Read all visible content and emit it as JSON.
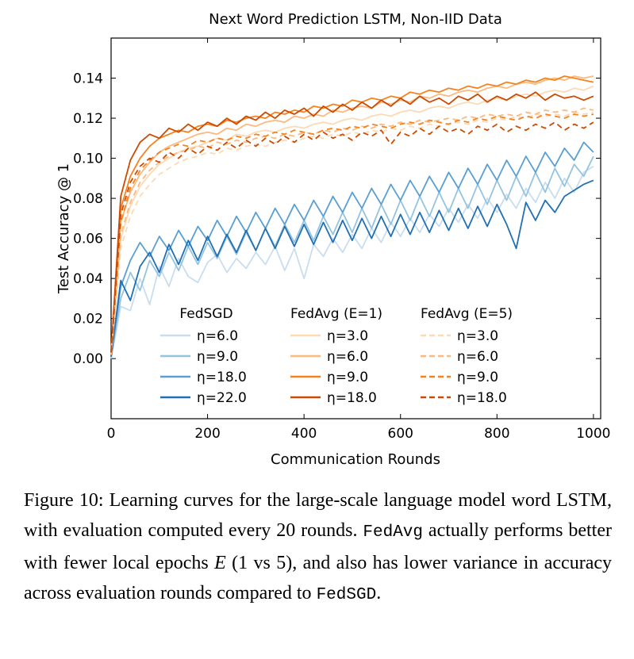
{
  "page": {
    "background": "#ffffff"
  },
  "chart_data": {
    "type": "line",
    "title": "Next Word Prediction LSTM, Non-IID Data",
    "xlabel": "Communication Rounds",
    "ylabel": "Test Accuracy @ 1",
    "xlim": [
      0,
      1015
    ],
    "ylim": [
      -0.03,
      0.16
    ],
    "xticks": [
      0,
      200,
      400,
      600,
      800,
      1000
    ],
    "yticks": [
      "0.00",
      "0.02",
      "0.04",
      "0.06",
      "0.08",
      "0.10",
      "0.12",
      "0.14"
    ],
    "grid": false,
    "legend_position": "lower center, inside plot, three columns, no frame",
    "x": [
      0,
      20,
      40,
      60,
      80,
      100,
      120,
      140,
      160,
      180,
      200,
      220,
      240,
      260,
      280,
      300,
      320,
      340,
      360,
      380,
      400,
      420,
      440,
      460,
      480,
      500,
      520,
      540,
      560,
      580,
      600,
      620,
      640,
      660,
      680,
      700,
      720,
      740,
      760,
      780,
      800,
      820,
      840,
      860,
      880,
      900,
      920,
      940,
      960,
      980,
      1000
    ],
    "legend": {
      "groups": [
        {
          "title": "FedSGD",
          "series": [
            0,
            1,
            2,
            3
          ]
        },
        {
          "title": "FedAvg (E=1)",
          "series": [
            4,
            5,
            6,
            7
          ]
        },
        {
          "title": "FedAvg (E=5)",
          "series": [
            8,
            9,
            10,
            11
          ]
        }
      ]
    },
    "series": [
      {
        "id": "fedsgd-eta-6",
        "group": "FedSGD",
        "label": "η=6.0",
        "eta": 6.0,
        "color": "#c9ddf0",
        "dash": false,
        "values": [
          0.0,
          0.026,
          0.024,
          0.04,
          0.027,
          0.046,
          0.036,
          0.05,
          0.041,
          0.038,
          0.048,
          0.052,
          0.043,
          0.05,
          0.045,
          0.053,
          0.047,
          0.056,
          0.044,
          0.055,
          0.04,
          0.057,
          0.051,
          0.06,
          0.053,
          0.062,
          0.055,
          0.065,
          0.058,
          0.068,
          0.061,
          0.07,
          0.063,
          0.072,
          0.066,
          0.075,
          0.068,
          0.077,
          0.07,
          0.08,
          0.073,
          0.082,
          0.075,
          0.085,
          0.078,
          0.088,
          0.08,
          0.09,
          0.083,
          0.093,
          0.096
        ]
      },
      {
        "id": "fedsgd-eta-9",
        "group": "FedSGD",
        "label": "η=9.0",
        "eta": 9.0,
        "color": "#94c4df",
        "dash": false,
        "values": [
          0.0,
          0.03,
          0.043,
          0.034,
          0.049,
          0.041,
          0.053,
          0.044,
          0.056,
          0.047,
          0.058,
          0.05,
          0.061,
          0.052,
          0.063,
          0.054,
          0.065,
          0.056,
          0.067,
          0.058,
          0.069,
          0.059,
          0.071,
          0.062,
          0.073,
          0.063,
          0.075,
          0.065,
          0.077,
          0.067,
          0.079,
          0.069,
          0.081,
          0.071,
          0.083,
          0.073,
          0.085,
          0.075,
          0.087,
          0.077,
          0.089,
          0.079,
          0.091,
          0.081,
          0.093,
          0.083,
          0.095,
          0.086,
          0.097,
          0.091,
          0.101
        ]
      },
      {
        "id": "fedsgd-eta-18",
        "group": "FedSGD",
        "label": "η=18.0",
        "eta": 18.0,
        "color": "#5a9fd4",
        "dash": false,
        "values": [
          0.001,
          0.036,
          0.049,
          0.058,
          0.051,
          0.061,
          0.054,
          0.064,
          0.056,
          0.066,
          0.059,
          0.069,
          0.061,
          0.071,
          0.063,
          0.073,
          0.065,
          0.075,
          0.067,
          0.077,
          0.069,
          0.079,
          0.071,
          0.081,
          0.073,
          0.083,
          0.075,
          0.085,
          0.077,
          0.087,
          0.079,
          0.089,
          0.081,
          0.091,
          0.083,
          0.093,
          0.085,
          0.095,
          0.087,
          0.097,
          0.089,
          0.099,
          0.091,
          0.101,
          0.093,
          0.103,
          0.096,
          0.105,
          0.099,
          0.108,
          0.103
        ]
      },
      {
        "id": "fedsgd-eta-22",
        "group": "FedSGD",
        "label": "η=22.0",
        "eta": 22.0,
        "color": "#2070b4",
        "dash": false,
        "values": [
          0.001,
          0.039,
          0.029,
          0.046,
          0.053,
          0.043,
          0.057,
          0.047,
          0.059,
          0.049,
          0.061,
          0.051,
          0.062,
          0.053,
          0.064,
          0.054,
          0.065,
          0.055,
          0.066,
          0.056,
          0.067,
          0.057,
          0.068,
          0.058,
          0.069,
          0.059,
          0.07,
          0.06,
          0.071,
          0.061,
          0.072,
          0.062,
          0.073,
          0.063,
          0.074,
          0.064,
          0.075,
          0.065,
          0.076,
          0.066,
          0.077,
          0.067,
          0.055,
          0.078,
          0.069,
          0.079,
          0.073,
          0.081,
          0.084,
          0.087,
          0.089
        ]
      },
      {
        "id": "fedavg-e1-eta-3",
        "group": "FedAvg (E=1)",
        "label": "η=3.0",
        "eta": 3.0,
        "color": "#fdd9b4",
        "dash": false,
        "values": [
          0.002,
          0.06,
          0.076,
          0.086,
          0.092,
          0.097,
          0.1,
          0.103,
          0.105,
          0.106,
          0.108,
          0.11,
          0.109,
          0.112,
          0.111,
          0.113,
          0.114,
          0.113,
          0.115,
          0.116,
          0.115,
          0.117,
          0.118,
          0.117,
          0.119,
          0.12,
          0.119,
          0.121,
          0.122,
          0.121,
          0.123,
          0.124,
          0.123,
          0.125,
          0.126,
          0.125,
          0.127,
          0.128,
          0.127,
          0.129,
          0.13,
          0.129,
          0.131,
          0.132,
          0.131,
          0.133,
          0.134,
          0.133,
          0.135,
          0.134,
          0.136
        ]
      },
      {
        "id": "fedavg-e1-eta-6",
        "group": "FedAvg (E=1)",
        "label": "η=6.0",
        "eta": 6.0,
        "color": "#fdb97d",
        "dash": false,
        "values": [
          0.002,
          0.068,
          0.083,
          0.092,
          0.098,
          0.103,
          0.106,
          0.108,
          0.11,
          0.112,
          0.113,
          0.112,
          0.115,
          0.114,
          0.117,
          0.116,
          0.118,
          0.119,
          0.118,
          0.121,
          0.12,
          0.122,
          0.121,
          0.124,
          0.123,
          0.125,
          0.126,
          0.125,
          0.128,
          0.127,
          0.129,
          0.128,
          0.131,
          0.13,
          0.132,
          0.131,
          0.133,
          0.134,
          0.133,
          0.135,
          0.136,
          0.135,
          0.137,
          0.138,
          0.137,
          0.139,
          0.14,
          0.139,
          0.141,
          0.14,
          0.141
        ]
      },
      {
        "id": "fedavg-e1-eta-9",
        "group": "FedAvg (E=1)",
        "label": "η=9.0",
        "eta": 9.0,
        "color": "#f5821f",
        "dash": false,
        "values": [
          0.003,
          0.075,
          0.091,
          0.1,
          0.106,
          0.11,
          0.112,
          0.114,
          0.113,
          0.116,
          0.117,
          0.116,
          0.119,
          0.118,
          0.12,
          0.121,
          0.12,
          0.123,
          0.122,
          0.124,
          0.123,
          0.126,
          0.125,
          0.127,
          0.126,
          0.129,
          0.128,
          0.13,
          0.129,
          0.131,
          0.13,
          0.133,
          0.132,
          0.134,
          0.133,
          0.135,
          0.134,
          0.136,
          0.135,
          0.137,
          0.136,
          0.138,
          0.137,
          0.139,
          0.138,
          0.14,
          0.139,
          0.141,
          0.14,
          0.139,
          0.138
        ]
      },
      {
        "id": "fedavg-e1-eta-18",
        "group": "FedAvg (E=1)",
        "label": "η=18.0",
        "eta": 18.0,
        "color": "#cc4b02",
        "dash": false,
        "values": [
          0.003,
          0.081,
          0.099,
          0.108,
          0.112,
          0.11,
          0.115,
          0.113,
          0.117,
          0.114,
          0.118,
          0.116,
          0.12,
          0.117,
          0.121,
          0.119,
          0.123,
          0.12,
          0.124,
          0.122,
          0.125,
          0.121,
          0.126,
          0.123,
          0.127,
          0.124,
          0.128,
          0.125,
          0.129,
          0.126,
          0.13,
          0.127,
          0.131,
          0.128,
          0.13,
          0.127,
          0.131,
          0.129,
          0.132,
          0.128,
          0.131,
          0.129,
          0.132,
          0.13,
          0.133,
          0.129,
          0.132,
          0.13,
          0.131,
          0.129,
          0.131
        ]
      },
      {
        "id": "fedavg-e5-eta-3",
        "group": "FedAvg (E=5)",
        "label": "η=3.0",
        "eta": 3.0,
        "color": "#fdd9b4",
        "dash": true,
        "values": [
          0.002,
          0.055,
          0.071,
          0.081,
          0.087,
          0.092,
          0.095,
          0.098,
          0.1,
          0.101,
          0.103,
          0.102,
          0.105,
          0.104,
          0.106,
          0.107,
          0.106,
          0.108,
          0.109,
          0.108,
          0.11,
          0.111,
          0.11,
          0.112,
          0.111,
          0.113,
          0.112,
          0.114,
          0.113,
          0.115,
          0.114,
          0.116,
          0.115,
          0.117,
          0.116,
          0.117,
          0.118,
          0.117,
          0.119,
          0.118,
          0.12,
          0.119,
          0.121,
          0.12,
          0.122,
          0.121,
          0.122,
          0.121,
          0.123,
          0.122,
          0.123
        ]
      },
      {
        "id": "fedavg-e5-eta-6",
        "group": "FedAvg (E=5)",
        "label": "η=6.0",
        "eta": 6.0,
        "color": "#fdb97d",
        "dash": true,
        "values": [
          0.002,
          0.062,
          0.078,
          0.088,
          0.094,
          0.098,
          0.101,
          0.103,
          0.104,
          0.106,
          0.105,
          0.108,
          0.107,
          0.109,
          0.108,
          0.11,
          0.111,
          0.11,
          0.112,
          0.111,
          0.113,
          0.112,
          0.114,
          0.113,
          0.115,
          0.114,
          0.116,
          0.115,
          0.117,
          0.116,
          0.118,
          0.117,
          0.119,
          0.118,
          0.119,
          0.12,
          0.119,
          0.121,
          0.12,
          0.122,
          0.121,
          0.122,
          0.121,
          0.123,
          0.122,
          0.124,
          0.123,
          0.124,
          0.123,
          0.125,
          0.124
        ]
      },
      {
        "id": "fedavg-e5-eta-9",
        "group": "FedAvg (E=5)",
        "label": "η=9.0",
        "eta": 9.0,
        "color": "#f5821f",
        "dash": true,
        "values": [
          0.003,
          0.068,
          0.085,
          0.094,
          0.099,
          0.103,
          0.105,
          0.107,
          0.106,
          0.109,
          0.108,
          0.11,
          0.109,
          0.111,
          0.11,
          0.112,
          0.111,
          0.113,
          0.112,
          0.114,
          0.113,
          0.112,
          0.114,
          0.115,
          0.114,
          0.116,
          0.115,
          0.117,
          0.116,
          0.115,
          0.117,
          0.118,
          0.117,
          0.119,
          0.118,
          0.117,
          0.119,
          0.118,
          0.12,
          0.119,
          0.121,
          0.12,
          0.119,
          0.121,
          0.12,
          0.122,
          0.121,
          0.12,
          0.122,
          0.121,
          0.122
        ]
      },
      {
        "id": "fedavg-e5-eta-18",
        "group": "FedAvg (E=5)",
        "label": "η=18.0",
        "eta": 18.0,
        "color": "#cc4b02",
        "dash": true,
        "values": [
          0.003,
          0.072,
          0.088,
          0.096,
          0.1,
          0.098,
          0.103,
          0.1,
          0.105,
          0.102,
          0.106,
          0.104,
          0.108,
          0.105,
          0.109,
          0.106,
          0.11,
          0.107,
          0.111,
          0.108,
          0.112,
          0.109,
          0.113,
          0.11,
          0.112,
          0.109,
          0.113,
          0.111,
          0.114,
          0.107,
          0.113,
          0.111,
          0.115,
          0.112,
          0.116,
          0.113,
          0.115,
          0.112,
          0.116,
          0.114,
          0.117,
          0.113,
          0.116,
          0.114,
          0.117,
          0.115,
          0.118,
          0.114,
          0.117,
          0.115,
          0.118
        ]
      }
    ]
  },
  "caption": {
    "segments": [
      {
        "text": "Figure 10: Learning curves for the large-scale language model word LSTM, with evaluation computed every 20 rounds. ",
        "style": "serif"
      },
      {
        "text": "FedAvg",
        "style": "mono"
      },
      {
        "text": " actually performs better with fewer local epochs ",
        "style": "serif"
      },
      {
        "text": "E",
        "style": "italic"
      },
      {
        "text": " (1 vs 5), and also has lower variance in accuracy across evaluation rounds compared to ",
        "style": "serif"
      },
      {
        "text": "FedSGD",
        "style": "mono"
      },
      {
        "text": ".",
        "style": "serif"
      }
    ]
  }
}
